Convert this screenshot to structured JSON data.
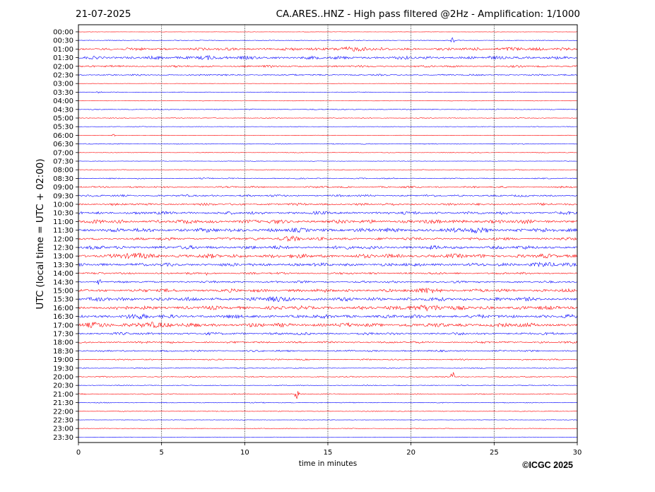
{
  "header": {
    "date": "21-07-2025",
    "title": "CA.ARES..HNZ - High pass filtered @2Hz - Amplification: 1/1000"
  },
  "footer": {
    "copyright": "©ICGC 2025"
  },
  "chart_data": {
    "type": "line",
    "title": "CA.ARES..HNZ - High pass filtered @2Hz - Amplification: 1/1000",
    "date": "21-07-2025",
    "xlabel": "time in minutes",
    "ylabel": "UTC (local time = UTC + 02:00)",
    "xlim": [
      0,
      30
    ],
    "xticks": [
      0,
      5,
      10,
      15,
      20,
      25,
      30
    ],
    "vertical_gridlines_at": [
      5,
      10,
      15,
      20,
      25
    ],
    "trace_colors": [
      "#ff0000",
      "#0000ff"
    ],
    "rows": [
      {
        "label": "00:00",
        "amp": 0.3,
        "bursts": []
      },
      {
        "label": "00:30",
        "amp": 0.6,
        "bursts": [
          [
            22.4,
            22.6,
            6
          ]
        ]
      },
      {
        "label": "01:00",
        "amp": 2.2,
        "bursts": [
          [
            15,
            18,
            3.5
          ],
          [
            25,
            27,
            3
          ]
        ]
      },
      {
        "label": "01:30",
        "amp": 2.5,
        "bursts": [
          [
            7,
            8.5,
            3.5
          ]
        ]
      },
      {
        "label": "02:00",
        "amp": 1.6,
        "bursts": []
      },
      {
        "label": "02:30",
        "amp": 1.2,
        "bursts": []
      },
      {
        "label": "03:00",
        "amp": 0.3,
        "bursts": []
      },
      {
        "label": "03:30",
        "amp": 0.5,
        "bursts": [
          [
            1.0,
            1.5,
            1.5
          ]
        ]
      },
      {
        "label": "04:00",
        "amp": 0.4,
        "bursts": []
      },
      {
        "label": "04:30",
        "amp": 0.8,
        "bursts": []
      },
      {
        "label": "05:00",
        "amp": 0.6,
        "bursts": []
      },
      {
        "label": "05:30",
        "amp": 0.5,
        "bursts": []
      },
      {
        "label": "06:00",
        "amp": 0.3,
        "bursts": [
          [
            2.0,
            2.2,
            2.5
          ]
        ]
      },
      {
        "label": "06:30",
        "amp": 0.7,
        "bursts": []
      },
      {
        "label": "07:00",
        "amp": 0.5,
        "bursts": []
      },
      {
        "label": "07:30",
        "amp": 0.4,
        "bursts": []
      },
      {
        "label": "08:00",
        "amp": 0.5,
        "bursts": []
      },
      {
        "label": "08:30",
        "amp": 0.9,
        "bursts": []
      },
      {
        "label": "09:00",
        "amp": 1.4,
        "bursts": []
      },
      {
        "label": "09:30",
        "amp": 1.6,
        "bursts": []
      },
      {
        "label": "10:00",
        "amp": 1.8,
        "bursts": []
      },
      {
        "label": "10:30",
        "amp": 2.4,
        "bursts": []
      },
      {
        "label": "11:00",
        "amp": 3.0,
        "bursts": []
      },
      {
        "label": "11:30",
        "amp": 3.2,
        "bursts": [
          [
            23,
            25,
            4.5
          ]
        ]
      },
      {
        "label": "12:00",
        "amp": 2.2,
        "bursts": [
          [
            12,
            13.5,
            4.5
          ]
        ]
      },
      {
        "label": "12:30",
        "amp": 2.8,
        "bursts": []
      },
      {
        "label": "13:00",
        "amp": 3.2,
        "bursts": [
          [
            2,
            5,
            4.5
          ]
        ]
      },
      {
        "label": "13:30",
        "amp": 2.6,
        "bursts": [
          [
            27,
            29,
            4
          ]
        ]
      },
      {
        "label": "14:00",
        "amp": 1.6,
        "bursts": [
          [
            7.6,
            7.8,
            4
          ]
        ]
      },
      {
        "label": "14:30",
        "amp": 1.6,
        "bursts": [
          [
            1.1,
            1.4,
            5
          ]
        ]
      },
      {
        "label": "15:00",
        "amp": 2.6,
        "bursts": [
          [
            20,
            22,
            4.5
          ]
        ]
      },
      {
        "label": "15:30",
        "amp": 3.0,
        "bursts": [
          [
            11,
            13,
            4.5
          ]
        ]
      },
      {
        "label": "16:00",
        "amp": 3.0,
        "bursts": [
          [
            19,
            23,
            4.5
          ]
        ]
      },
      {
        "label": "16:30",
        "amp": 2.8,
        "bursts": [
          [
            2.5,
            4.5,
            4.5
          ]
        ]
      },
      {
        "label": "17:00",
        "amp": 3.2,
        "bursts": [
          [
            0,
            2,
            4.5
          ],
          [
            3,
            6,
            4.5
          ]
        ]
      },
      {
        "label": "17:30",
        "amp": 2.0,
        "bursts": []
      },
      {
        "label": "18:00",
        "amp": 1.6,
        "bursts": []
      },
      {
        "label": "18:30",
        "amp": 1.4,
        "bursts": []
      },
      {
        "label": "19:00",
        "amp": 1.0,
        "bursts": []
      },
      {
        "label": "19:30",
        "amp": 0.8,
        "bursts": []
      },
      {
        "label": "20:00",
        "amp": 0.9,
        "bursts": [
          [
            22.4,
            22.6,
            9
          ]
        ]
      },
      {
        "label": "20:30",
        "amp": 0.7,
        "bursts": []
      },
      {
        "label": "21:00",
        "amp": 0.8,
        "bursts": [
          [
            13.0,
            13.3,
            8
          ]
        ]
      },
      {
        "label": "21:30",
        "amp": 0.7,
        "bursts": []
      },
      {
        "label": "22:00",
        "amp": 0.6,
        "bursts": []
      },
      {
        "label": "22:30",
        "amp": 0.4,
        "bursts": []
      },
      {
        "label": "23:00",
        "amp": 0.5,
        "bursts": []
      },
      {
        "label": "23:30",
        "amp": 0.3,
        "bursts": []
      }
    ]
  }
}
